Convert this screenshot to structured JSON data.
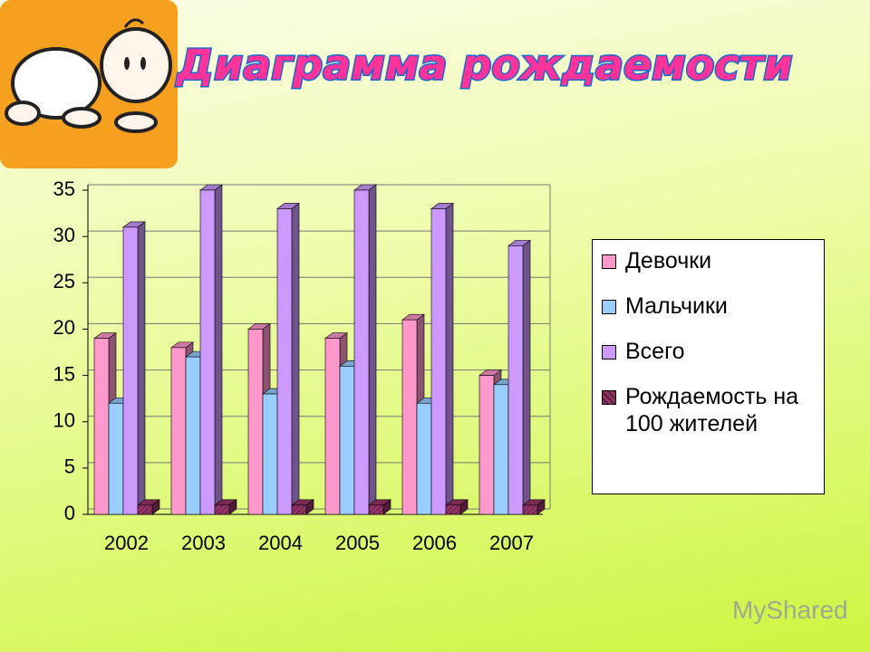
{
  "chart_data": {
    "type": "bar3d",
    "title": "Диаграмма рождаемости",
    "categories": [
      "2002",
      "2003",
      "2004",
      "2005",
      "2006",
      "2007"
    ],
    "series": [
      {
        "name": "Девочки",
        "color": "#ff99cc",
        "values": [
          19,
          18,
          20,
          19,
          21,
          15
        ]
      },
      {
        "name": "Мальчики",
        "color": "#99ccff",
        "values": [
          12,
          17,
          13,
          16,
          12,
          14
        ]
      },
      {
        "name": "Всего",
        "color": "#cc99ff",
        "values": [
          31,
          35,
          33,
          35,
          33,
          29
        ]
      },
      {
        "name": "Рождаемость на 100 жителей",
        "color": "#993366",
        "values": [
          1,
          1,
          1,
          1,
          1,
          1
        ]
      }
    ],
    "ylim": [
      0,
      35
    ],
    "yticks": [
      0,
      5,
      10,
      15,
      20,
      25,
      30,
      35
    ],
    "grid": true,
    "legend": "right"
  },
  "watermark": "MyShared"
}
